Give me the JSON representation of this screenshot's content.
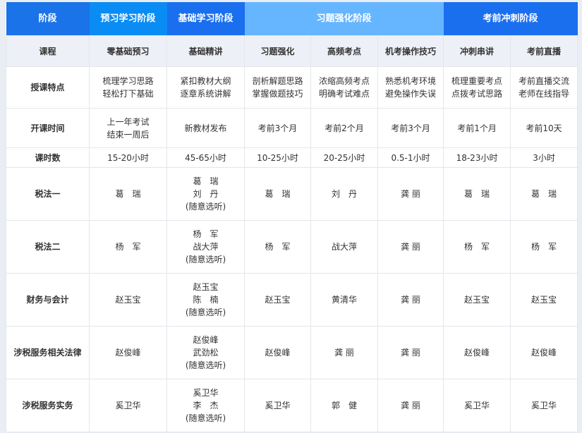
{
  "colors": {
    "stage_label": "#1a73e8",
    "preview": "#0a8cf5",
    "basic": "#1a6fef",
    "practice": "#66b5ff",
    "sprint": "#1a6fef"
  },
  "header": {
    "label": "阶段",
    "stages": [
      {
        "name": "预习学习阶段",
        "span": 1,
        "color": "#0a8cf5"
      },
      {
        "name": "基础学习阶段",
        "span": 1,
        "color": "#1a6fef"
      },
      {
        "name": "习题强化阶段",
        "span": 3,
        "color": "#66b5ff"
      },
      {
        "name": "考前冲刺阶段",
        "span": 2,
        "color": "#1a6fef"
      }
    ]
  },
  "courses": {
    "label": "课程",
    "items": [
      "零基础预习",
      "基础精讲",
      "习题强化",
      "高频考点",
      "机考操作技巧",
      "冲刺串讲",
      "考前直播"
    ]
  },
  "rows": [
    {
      "label": "授课特点",
      "height": 59,
      "cells": [
        "梳理学习思路\n轻松打下基础",
        "紧扣教材大纲\n逐章系统讲解",
        "剖析解题思路\n掌握做题技巧",
        "浓缩高频考点\n明确考试难点",
        "熟悉机考环境\n避免操作失误",
        "梳理重要考点\n点拨考试思路",
        "考前直播交流\n老师在线指导"
      ]
    },
    {
      "label": "开课时间",
      "height": 56,
      "cells": [
        "上一年考试\n结束一周后",
        "新教材发布",
        "考前3个月",
        "考前2个月",
        "考前3个月",
        "考前1个月",
        "考前10天"
      ]
    },
    {
      "label": "课时数",
      "height": 28,
      "cells": [
        "15-20小时",
        "45-65小时",
        "10-25小时",
        "20-25小时",
        "0.5-1小时",
        "18-23小时",
        "3小时"
      ]
    },
    {
      "label": "税法一",
      "height": 75,
      "cells": [
        "葛　瑞",
        "葛　瑞\n刘　丹\n(随意选听)",
        "葛　瑞",
        "刘　丹",
        "龚 丽",
        "葛　瑞",
        "葛　瑞"
      ]
    },
    {
      "label": "税法二",
      "height": 75,
      "cells": [
        "杨　军",
        "杨　军\n战大萍\n(随意选听)",
        "杨　军",
        "战大萍",
        "龚 丽",
        "杨　军",
        "杨　军"
      ]
    },
    {
      "label": "财务与会计",
      "height": 75,
      "cells": [
        "赵玉宝",
        "赵玉宝\n陈　楠\n(随意选听)",
        "赵玉宝",
        "黄清华",
        "龚 丽",
        "赵玉宝",
        "赵玉宝"
      ]
    },
    {
      "label": "涉税服务相关法律",
      "height": 75,
      "cells": [
        "赵俊峰",
        "赵俊峰\n武劲松\n(随意选听)",
        "赵俊峰",
        "龚 丽",
        "龚 丽",
        "赵俊峰",
        "赵俊峰"
      ]
    },
    {
      "label": "涉税服务实务",
      "height": 75,
      "cells": [
        "奚卫华",
        "奚卫华\n李　杰\n(随意选听)",
        "奚卫华",
        "郭　健",
        "龚 丽",
        "奚卫华",
        "奚卫华"
      ]
    }
  ]
}
